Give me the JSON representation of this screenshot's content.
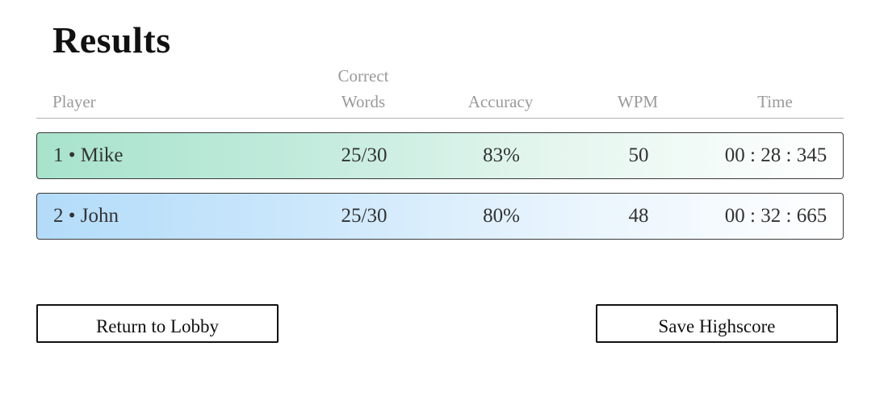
{
  "page": {
    "title": "Results"
  },
  "table": {
    "columns": {
      "player": "Player",
      "correct_words_line1": "Correct",
      "correct_words_line2": "Words",
      "accuracy": "Accuracy",
      "wpm": "WPM",
      "time": "Time"
    },
    "rows": [
      {
        "player": "1 • Mike",
        "correct_words": "25/30",
        "accuracy": "83%",
        "wpm": "50",
        "time": "00 : 28 : 345",
        "accent_color": "#a8e3cc"
      },
      {
        "player": "2 • John",
        "correct_words": "25/30",
        "accuracy": "80%",
        "wpm": "48",
        "time": "00 : 32 : 665",
        "accent_color": "#b3dcf9"
      }
    ]
  },
  "actions": {
    "return_label": "Return to Lobby",
    "save_label": "Save Highscore"
  }
}
